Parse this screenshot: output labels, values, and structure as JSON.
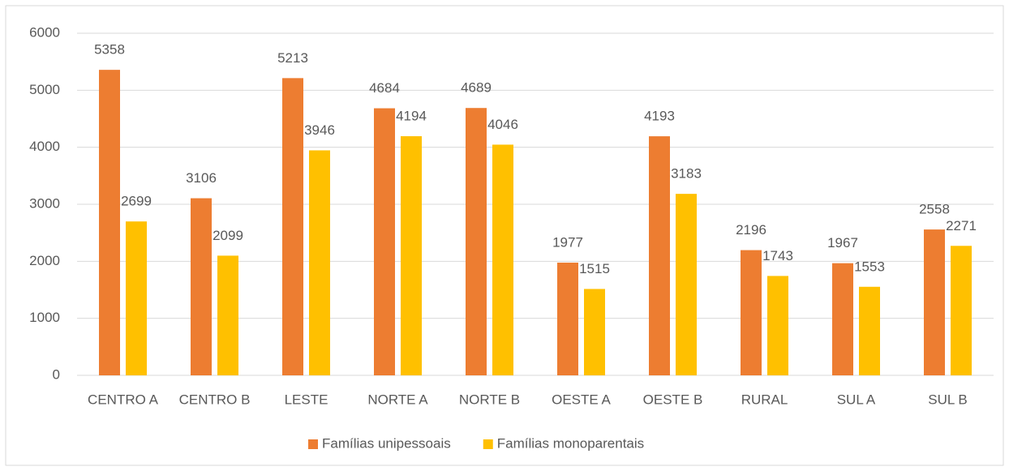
{
  "chart_data": {
    "type": "bar",
    "categories": [
      "CENTRO A",
      "CENTRO B",
      "LESTE",
      "NORTE A",
      "NORTE B",
      "OESTE A",
      "OESTE B",
      "RURAL",
      "SUL A",
      "SUL B"
    ],
    "series": [
      {
        "name": "Famílias unipessoais",
        "color": "#ed7d31",
        "values": [
          5358,
          3106,
          5213,
          4684,
          4689,
          1977,
          4193,
          2196,
          1967,
          2558
        ]
      },
      {
        "name": "Famílias monoparentais",
        "color": "#ffc000",
        "values": [
          2699,
          2099,
          3946,
          4194,
          4046,
          1515,
          3183,
          1743,
          1553,
          2271
        ]
      }
    ],
    "ylim": [
      0,
      6000
    ],
    "yticks": [
      0,
      1000,
      2000,
      3000,
      4000,
      5000,
      6000
    ],
    "grid": true,
    "legend": "bottom"
  }
}
